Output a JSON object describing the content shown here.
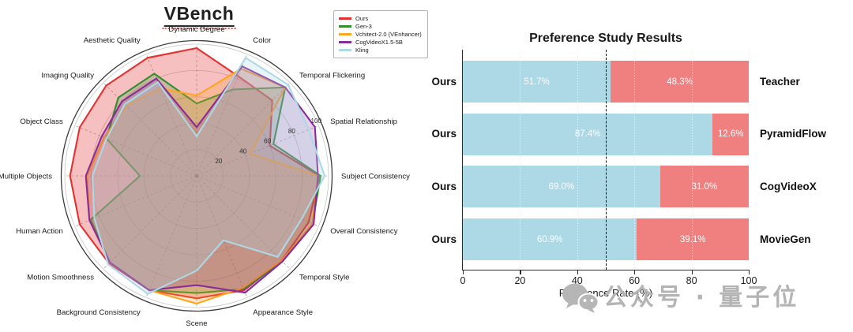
{
  "watermark": {
    "text": "公众号 · 量子位"
  },
  "chart_data": [
    {
      "type": "radar",
      "title": "VBench",
      "rlim": [
        0,
        100
      ],
      "rticks": [
        20,
        40,
        60,
        80,
        100
      ],
      "grid": true,
      "legend_position": "top-right",
      "categories": [
        "Dynamic Degree",
        "Color",
        "Temporal Flickering",
        "Spatial Relationship",
        "Subject Consistency",
        "Overall Consistency",
        "Temporal Style",
        "Appearance Style",
        "Scene",
        "Background Consistency",
        "Motion Smoothness",
        "Human Action",
        "Multiple Objects",
        "Object Class",
        "Imaging Quality",
        "Aesthetic Quality"
      ],
      "series": [
        {
          "name": "Ours",
          "color": "#e53030",
          "fill_opacity": 0.3,
          "values": [
            97,
            82,
            81,
            60,
            93,
            92,
            91,
            94,
            93,
            94,
            94,
            96,
            96,
            96,
            97,
            97
          ]
        },
        {
          "name": "Gen-3",
          "color": "#2f8f2c",
          "fill_opacity": 0.22,
          "values": [
            55,
            71,
            95,
            63,
            94,
            95,
            92,
            93,
            89,
            94,
            93,
            87,
            43,
            74,
            84,
            84
          ]
        },
        {
          "name": "Vchitect-2.0 (VEnhancer)",
          "color": "#ffa51e",
          "fill_opacity": 0.25,
          "values": [
            61,
            88,
            95,
            44,
            92,
            95,
            91,
            92,
            97,
            94,
            93,
            88,
            83,
            76,
            75,
            72
          ]
        },
        {
          "name": "CogVideoX1.5-5B",
          "color": "#8a2b9b",
          "fill_opacity": 0.22,
          "values": [
            37,
            90,
            95,
            97,
            92,
            96,
            92,
            96,
            83,
            94,
            93,
            88,
            84,
            78,
            80,
            80
          ]
        },
        {
          "name": "Kling",
          "color": "#add8e6",
          "fill_opacity": 0.28,
          "values": [
            30,
            97,
            98,
            92,
            97,
            86,
            87,
            53,
            72,
            97,
            95,
            84,
            79,
            74,
            77,
            77
          ]
        }
      ]
    },
    {
      "type": "bar",
      "orientation": "horizontal-stacked",
      "title": "Preference Study Results",
      "xlabel": "Preference Rate (%)",
      "xlim": [
        0,
        100
      ],
      "xticks": [
        0,
        20,
        40,
        60,
        80,
        100
      ],
      "reference_line": 50,
      "colors": {
        "ours": "#add8e6",
        "competitor": "#f08080"
      },
      "rows": [
        {
          "left_label": "Ours",
          "right_label": "Teacher",
          "ours_pct": 51.7,
          "competitor_pct": 48.3,
          "ours_text": "51.7%",
          "competitor_text": "48.3%"
        },
        {
          "left_label": "Ours",
          "right_label": "PyramidFlow",
          "ours_pct": 87.4,
          "competitor_pct": 12.6,
          "ours_text": "87.4%",
          "competitor_text": "12.6%"
        },
        {
          "left_label": "Ours",
          "right_label": "CogVideoX",
          "ours_pct": 69.0,
          "competitor_pct": 31.0,
          "ours_text": "69.0%",
          "competitor_text": "31.0%"
        },
        {
          "left_label": "Ours",
          "right_label": "MovieGen",
          "ours_pct": 60.9,
          "competitor_pct": 39.1,
          "ours_text": "60.9%",
          "competitor_text": "39.1%"
        }
      ]
    }
  ]
}
